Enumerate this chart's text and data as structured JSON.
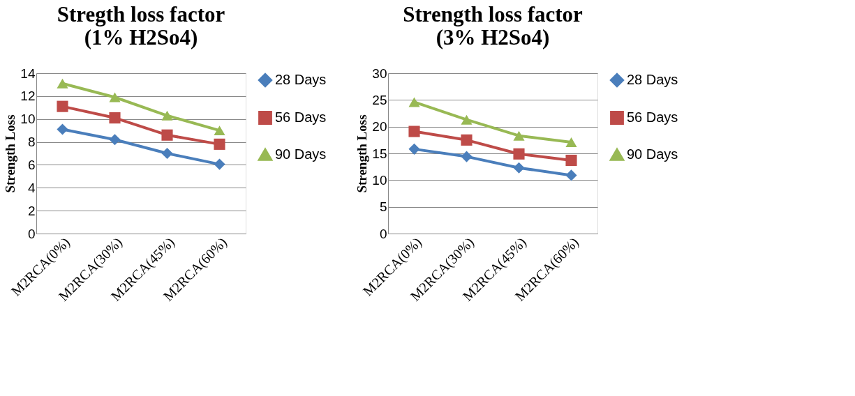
{
  "chart_data": [
    {
      "type": "line",
      "title": "Stregth loss factor\n(1% H2So4)",
      "ylabel": "Strength Loss",
      "categories": [
        "M2RCA(0%)",
        "M2RCA(30%)",
        "M2RCA(45%)",
        "M2RCA(60%)"
      ],
      "ylim": [
        0,
        14
      ],
      "yticks": [
        0,
        2,
        4,
        6,
        8,
        10,
        12,
        14
      ],
      "grid": "y",
      "legend": "right",
      "series": [
        {
          "name": "28 Days",
          "color": "#4a7ebb",
          "marker": "diamond",
          "values": [
            9.1,
            8.2,
            7.0,
            6.05
          ]
        },
        {
          "name": "56 Days",
          "color": "#be4b48",
          "marker": "square",
          "values": [
            11.1,
            10.1,
            8.6,
            7.8
          ]
        },
        {
          "name": "90 Days",
          "color": "#98b954",
          "marker": "triangle",
          "values": [
            13.1,
            11.9,
            10.3,
            9.0
          ]
        }
      ]
    },
    {
      "type": "line",
      "title": "Strength loss factor\n(3% H2So4)",
      "ylabel": "Strength Loss",
      "categories": [
        "M2RCA(0%)",
        "M2RCA(30%)",
        "M2RCA(45%)",
        "M2RCA(60%)"
      ],
      "ylim": [
        0,
        30
      ],
      "yticks": [
        0,
        5,
        10,
        15,
        20,
        25,
        30
      ],
      "grid": "y",
      "legend": "right",
      "series": [
        {
          "name": "28 Days",
          "color": "#4a7ebb",
          "marker": "diamond",
          "values": [
            15.8,
            14.4,
            12.3,
            10.9
          ]
        },
        {
          "name": "56 Days",
          "color": "#be4b48",
          "marker": "square",
          "values": [
            19.1,
            17.5,
            14.9,
            13.7
          ]
        },
        {
          "name": "90 Days",
          "color": "#98b954",
          "marker": "triangle",
          "values": [
            24.6,
            21.3,
            18.3,
            17.1
          ]
        }
      ]
    }
  ]
}
